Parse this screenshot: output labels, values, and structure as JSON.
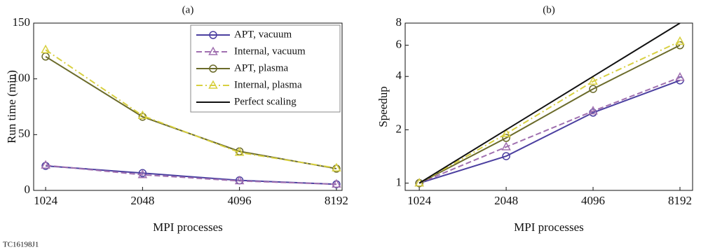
{
  "footer": "TC16198J1",
  "chart_data": [
    {
      "type": "line",
      "title": "(a)",
      "xlabel": "MPI processes",
      "ylabel": "Run time (min)",
      "x": [
        1024,
        2048,
        4096,
        8192
      ],
      "xscale": "log",
      "xlim": [
        940,
        8530
      ],
      "xticks": [
        1024,
        2048,
        4096,
        8192
      ],
      "ylim": [
        0,
        150
      ],
      "yticks": [
        0,
        50,
        100,
        150
      ],
      "series": [
        {
          "name": "APT, vacuum",
          "color": "#4b3fa0",
          "marker": "circle",
          "dash": "solid",
          "values": [
            22,
            15.5,
            9,
            5.5
          ]
        },
        {
          "name": "Internal, vacuum",
          "color": "#a070b0",
          "marker": "triangle",
          "dash": "dashed",
          "values": [
            22.5,
            14,
            8.5,
            5.5
          ]
        },
        {
          "name": "APT, plasma",
          "color": "#6b6b2a",
          "marker": "circle",
          "dash": "solid",
          "values": [
            120,
            66,
            35,
            19.5
          ]
        },
        {
          "name": "Internal, plasma",
          "color": "#d8d040",
          "marker": "triangle",
          "dash": "dashdot",
          "values": [
            126,
            67,
            34,
            20
          ]
        }
      ],
      "legend": {
        "loc": "upper right",
        "entries": [
          {
            "name": "APT, vacuum",
            "color": "#4b3fa0",
            "marker": "circle",
            "dash": "solid"
          },
          {
            "name": "Internal, vacuum",
            "color": "#a070b0",
            "marker": "triangle",
            "dash": "dashed"
          },
          {
            "name": "APT, plasma",
            "color": "#6b6b2a",
            "marker": "circle",
            "dash": "solid"
          },
          {
            "name": "Internal, plasma",
            "color": "#d8d040",
            "marker": "triangle",
            "dash": "dashdot"
          },
          {
            "name": "Perfect scaling",
            "color": "#111111",
            "marker": "none",
            "dash": "solid"
          }
        ]
      }
    },
    {
      "type": "line",
      "title": "(b)",
      "xlabel": "MPI processes",
      "ylabel": "Speedup",
      "x": [
        1024,
        2048,
        4096,
        8192
      ],
      "xscale": "log",
      "xlim": [
        915,
        9060
      ],
      "xticks": [
        1024,
        2048,
        4096,
        8192
      ],
      "yscale": "log",
      "ylim": [
        0.91,
        8
      ],
      "yticks": [
        1,
        2,
        4,
        6,
        8
      ],
      "series": [
        {
          "color": "#4b3fa0",
          "marker": "circle",
          "dash": "solid",
          "values": [
            1,
            1.42,
            2.5,
            3.8
          ]
        },
        {
          "color": "#a070b0",
          "marker": "triangle",
          "dash": "dashed",
          "values": [
            1,
            1.6,
            2.55,
            3.95
          ]
        },
        {
          "color": "#6b6b2a",
          "marker": "circle",
          "dash": "solid",
          "values": [
            1,
            1.8,
            3.4,
            6.0
          ]
        },
        {
          "color": "#d8d040",
          "marker": "triangle",
          "dash": "dashdot",
          "values": [
            1,
            1.9,
            3.75,
            6.3
          ]
        },
        {
          "color": "#111111",
          "marker": "none",
          "dash": "solid",
          "values": [
            1,
            2,
            4,
            8
          ]
        }
      ]
    }
  ]
}
